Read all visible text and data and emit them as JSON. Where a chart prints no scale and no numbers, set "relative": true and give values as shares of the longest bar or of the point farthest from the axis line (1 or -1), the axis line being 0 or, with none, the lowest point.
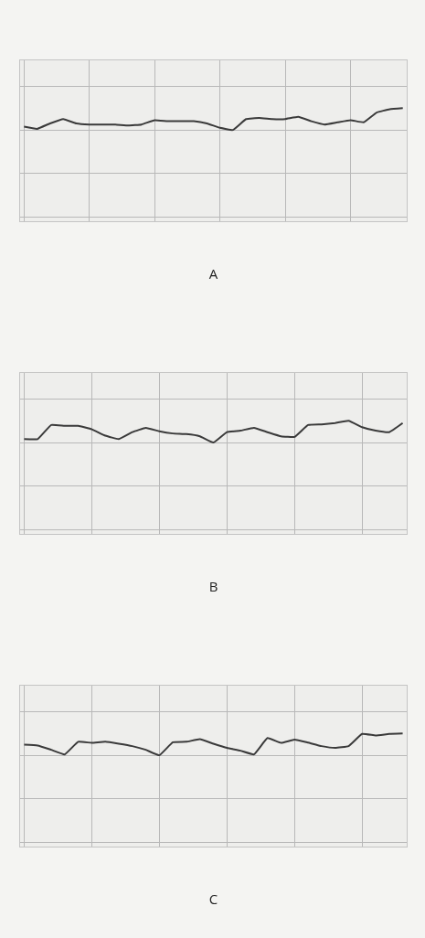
{
  "chart_data": [
    {
      "type": "line",
      "xlabel": "A",
      "relative": true,
      "grid": true,
      "color": "#3a3a3a",
      "categories": [
        null,
        null,
        null,
        null,
        null,
        null,
        null,
        null,
        null,
        null,
        null,
        null,
        null,
        null,
        null,
        null,
        null,
        null,
        null,
        null,
        null,
        null,
        null,
        null,
        null,
        null,
        null,
        null,
        null,
        null
      ],
      "values": [
        0.15,
        0.05,
        0.3,
        0.5,
        0.3,
        0.25,
        0.25,
        0.25,
        0.2,
        0.25,
        0.45,
        0.4,
        0.4,
        0.4,
        0.3,
        0.1,
        0,
        0.5,
        0.55,
        0.5,
        0.5,
        0.6,
        0.4,
        0.25,
        0.35,
        0.45,
        0.35,
        0.8,
        0.95,
        1
      ]
    },
    {
      "type": "line",
      "xlabel": "B",
      "relative": true,
      "grid": true,
      "color": "#3a3a3a",
      "categories": [
        null,
        null,
        null,
        null,
        null,
        null,
        null,
        null,
        null,
        null,
        null,
        null,
        null,
        null,
        null,
        null,
        null,
        null,
        null,
        null,
        null,
        null,
        null,
        null,
        null,
        null,
        null,
        null,
        null
      ],
      "values": [
        0.16,
        0.16,
        0.81,
        0.77,
        0.77,
        0.61,
        0.32,
        0.16,
        0.48,
        0.68,
        0.52,
        0.42,
        0.39,
        0.29,
        0,
        0.48,
        0.55,
        0.68,
        0.48,
        0.29,
        0.26,
        0.81,
        0.84,
        0.9,
        1,
        0.71,
        0.55,
        0.48,
        0.9
      ]
    },
    {
      "type": "line",
      "xlabel": "C",
      "relative": true,
      "grid": true,
      "color": "#3a3a3a",
      "categories": [
        null,
        null,
        null,
        null,
        null,
        null,
        null,
        null,
        null,
        null,
        null,
        null,
        null,
        null,
        null,
        null,
        null,
        null,
        null,
        null,
        null,
        null,
        null,
        null,
        null,
        null,
        null,
        null,
        null
      ],
      "values": [
        0.49,
        0.45,
        0.25,
        0.04,
        0.62,
        0.57,
        0.62,
        0.53,
        0.42,
        0.25,
        0,
        0.6,
        0.62,
        0.74,
        0.53,
        0.34,
        0.21,
        0.04,
        0.79,
        0.57,
        0.72,
        0.58,
        0.42,
        0.34,
        0.42,
        0.98,
        0.91,
        0.98,
        1
      ]
    }
  ]
}
